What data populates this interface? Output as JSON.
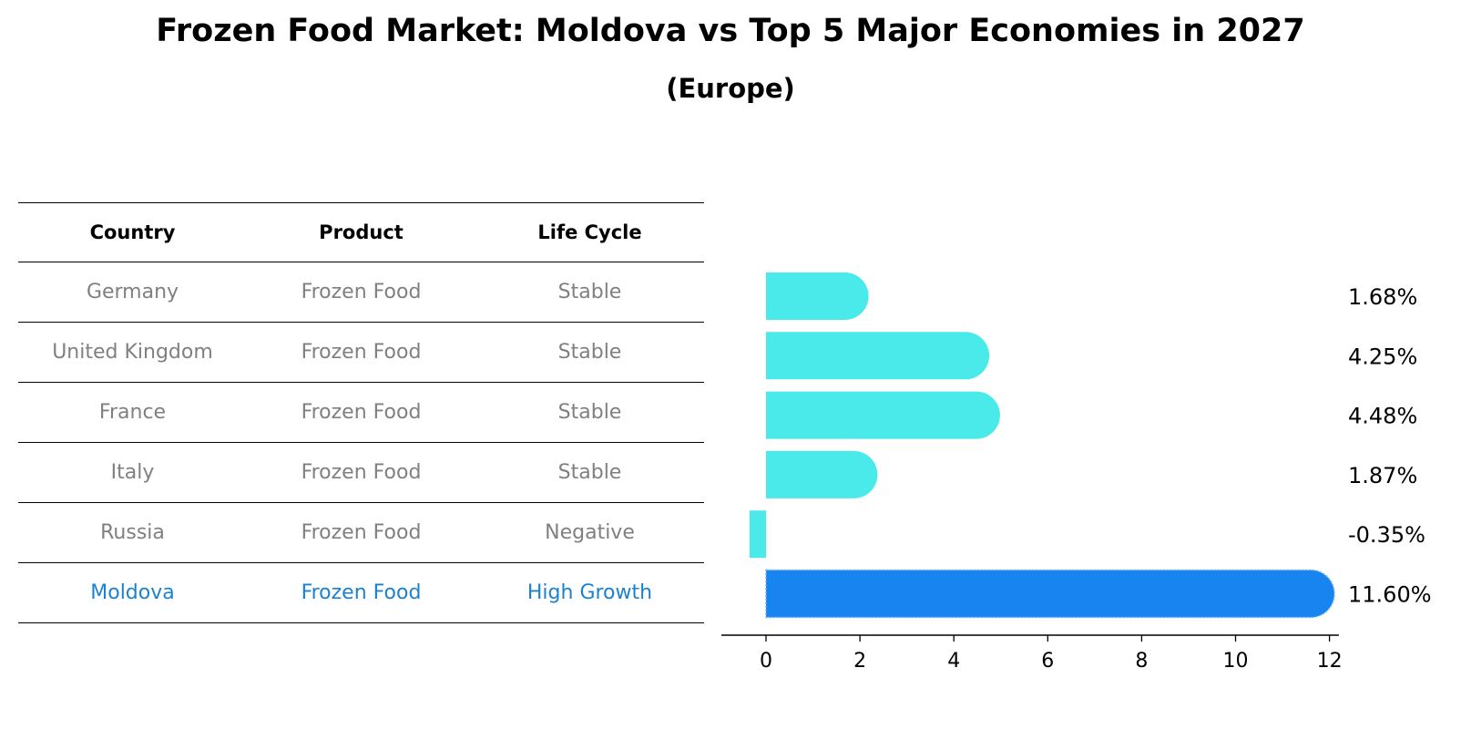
{
  "title": "Frozen Food Market: Moldova vs Top 5 Major Economies in 2027",
  "subtitle": "(Europe)",
  "table": {
    "headers": [
      "Country",
      "Product",
      "Life Cycle"
    ],
    "rows": [
      {
        "country": "Germany",
        "product": "Frozen Food",
        "life_cycle": "Stable"
      },
      {
        "country": "United Kingdom",
        "product": "Frozen Food",
        "life_cycle": "Stable"
      },
      {
        "country": "France",
        "product": "Frozen Food",
        "life_cycle": "Stable"
      },
      {
        "country": "Italy",
        "product": "Frozen Food",
        "life_cycle": "Stable"
      },
      {
        "country": "Russia",
        "product": "Frozen Food",
        "life_cycle": "Negative"
      },
      {
        "country": "Moldova",
        "product": "Frozen Food",
        "life_cycle": "High Growth"
      }
    ]
  },
  "colors": {
    "bar": "#4beaea",
    "highlight_bar": "#1884f0",
    "highlight_text": "#1a82d0",
    "muted_text": "#808080"
  },
  "chart_data": {
    "type": "bar",
    "orientation": "horizontal",
    "categories": [
      "Germany",
      "United Kingdom",
      "France",
      "Italy",
      "Russia",
      "Moldova"
    ],
    "values": [
      1.68,
      4.25,
      4.48,
      1.87,
      -0.35,
      11.6
    ],
    "labels": [
      "1.68%",
      "4.25%",
      "4.48%",
      "1.87%",
      "-0.35%",
      "11.60%"
    ],
    "highlight": "Moldova",
    "xlim": [
      -0.95,
      12.2
    ],
    "xticks": [
      0,
      2,
      4,
      6,
      8,
      10,
      12
    ],
    "grid": false
  }
}
